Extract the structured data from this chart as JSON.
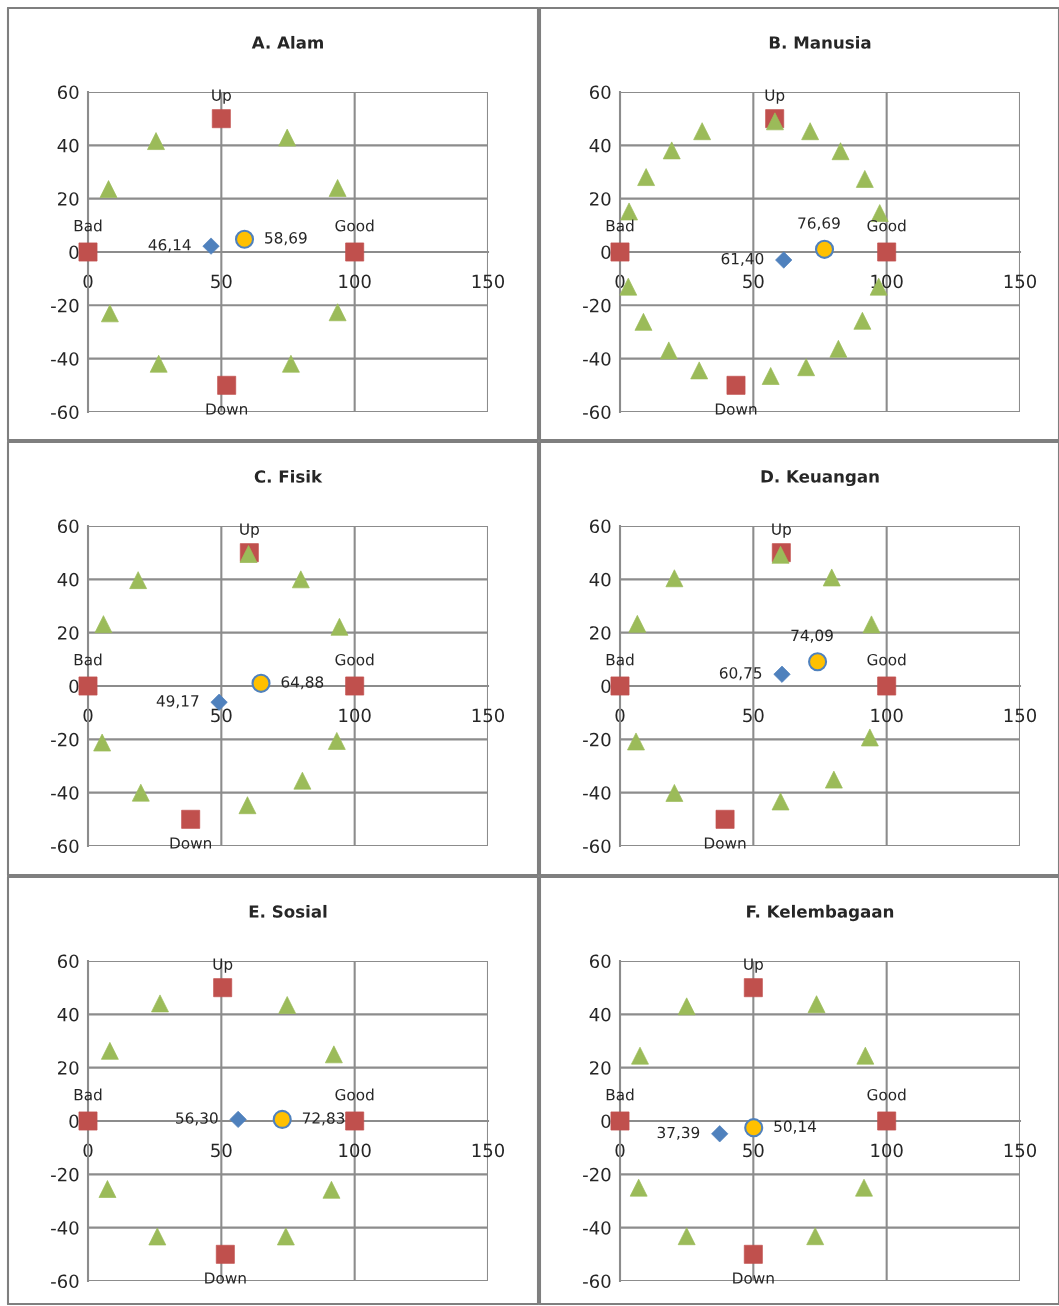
{
  "chart_data": [
    {
      "type": "scatter",
      "title": "A. Alam",
      "xlim": [
        0,
        150
      ],
      "xticks": [
        0,
        50,
        100,
        150
      ],
      "ylim": [
        -60,
        60
      ],
      "yticks": [
        -60,
        -40,
        -20,
        0,
        20,
        40,
        60
      ],
      "grid": true,
      "series": [
        {
          "color": "#9bbb59",
          "marker": "triangle",
          "x": [
            25.5,
            74.7,
            7.7,
            93.6,
            8.2,
            93.6,
            26.5,
            76.1
          ],
          "values": [
            41.6,
            42.9,
            23.6,
            24,
            -23,
            -22.6,
            -41.9,
            -41.9
          ]
        },
        {
          "color": "#c0504d",
          "marker": "square",
          "x": [
            0,
            100,
            50,
            52
          ],
          "values": [
            0,
            0,
            50,
            -50
          ],
          "value_labels": [
            "Bad",
            "Good",
            "Up",
            "Down"
          ]
        },
        {
          "color": "#4f81bd",
          "marker": "diamond",
          "x": [
            46.14
          ],
          "values": [
            2.2
          ]
        },
        {
          "color": "#ffc000",
          "marker": "circle",
          "x": [
            58.69
          ],
          "values": [
            4.8
          ]
        }
      ],
      "annotations": [
        {
          "text": "46,14",
          "x": 46.14,
          "y": 2.2
        },
        {
          "text": "58,69",
          "x": 58.69,
          "y": 4.8
        }
      ]
    },
    {
      "type": "scatter",
      "title": "B. Manusia",
      "xlim": [
        0,
        150
      ],
      "xticks": [
        0,
        50,
        100,
        150
      ],
      "ylim": [
        -60,
        60
      ],
      "yticks": [
        -60,
        -40,
        -20,
        0,
        20,
        40,
        60
      ],
      "grid": true,
      "series": [
        {
          "color": "#c0504d",
          "marker": "square",
          "x": [
            0,
            100,
            58,
            43.5
          ],
          "values": [
            0,
            0,
            50,
            -50
          ],
          "value_labels": [
            "Bad",
            "Good",
            "Up",
            "Down"
          ]
        },
        {
          "color": "#9bbb59",
          "marker": "triangle",
          "x": [
            30.8,
            19.4,
            9.8,
            3.4,
            58.1,
            71.3,
            82.7,
            91.8,
            97.4,
            3.1,
            97,
            8.8,
            18.3,
            29.7,
            56.5,
            69.8,
            81.9,
            90.9
          ],
          "values": [
            45.3,
            38.1,
            28.1,
            15.2,
            49,
            45.3,
            37.8,
            27.4,
            14.6,
            -13,
            -13,
            -26.2,
            -36.9,
            -44.4,
            -46.5,
            -43.2,
            -36.3,
            -25.8
          ]
        },
        {
          "color": "#4f81bd",
          "marker": "diamond",
          "x": [
            61.4
          ],
          "values": [
            -3
          ]
        },
        {
          "color": "#ffc000",
          "marker": "circle",
          "x": [
            76.69
          ],
          "values": [
            1
          ]
        }
      ],
      "annotations": [
        {
          "text": "61,40",
          "x": 61.4,
          "y": -3
        },
        {
          "text": "76,69",
          "x": 76.69,
          "y": 1
        }
      ]
    },
    {
      "type": "scatter",
      "title": "C. Fisik",
      "xlim": [
        0,
        150
      ],
      "xticks": [
        0,
        50,
        100,
        150
      ],
      "ylim": [
        -60,
        60
      ],
      "yticks": [
        -60,
        -40,
        -20,
        0,
        20,
        40,
        60
      ],
      "grid": true,
      "series": [
        {
          "color": "#c0504d",
          "marker": "square",
          "x": [
            0,
            100,
            60.5,
            38.5
          ],
          "values": [
            0,
            0,
            50,
            -50
          ],
          "value_labels": [
            "Bad",
            "Good",
            "Up",
            "Down"
          ]
        },
        {
          "color": "#9bbb59",
          "marker": "triangle",
          "x": [
            60.2,
            18.8,
            79.8,
            5.8,
            94.3,
            5.3,
            93.3,
            19.8,
            80.4,
            59.8
          ],
          "values": [
            49.5,
            39.7,
            40,
            23.2,
            22.2,
            -21.2,
            -20.6,
            -40,
            -35.5,
            -44.7
          ]
        },
        {
          "color": "#4f81bd",
          "marker": "diamond",
          "x": [
            49.17
          ],
          "values": [
            -6.1
          ]
        },
        {
          "color": "#ffc000",
          "marker": "circle",
          "x": [
            64.88
          ],
          "values": [
            1
          ]
        }
      ],
      "annotations": [
        {
          "text": "49,17",
          "x": 49.17,
          "y": -6.1
        },
        {
          "text": "64,88",
          "x": 64.88,
          "y": 1
        }
      ]
    },
    {
      "type": "scatter",
      "title": "D. Keuangan",
      "xlim": [
        0,
        150
      ],
      "xticks": [
        0,
        50,
        100,
        150
      ],
      "ylim": [
        -60,
        60
      ],
      "yticks": [
        -60,
        -40,
        -20,
        0,
        20,
        40,
        60
      ],
      "grid": true,
      "series": [
        {
          "color": "#c0504d",
          "marker": "square",
          "x": [
            0,
            100,
            60.5,
            39.4
          ],
          "values": [
            0,
            0,
            50,
            -50
          ],
          "value_labels": [
            "Bad",
            "Good",
            "Up",
            "Down"
          ]
        },
        {
          "color": "#9bbb59",
          "marker": "triangle",
          "x": [
            60.2,
            20.4,
            79.4,
            6.5,
            94.3,
            6,
            93.7,
            20.4,
            80.2,
            60.2
          ],
          "values": [
            49.2,
            40.4,
            40.7,
            23.3,
            23.1,
            -20.8,
            -19.3,
            -40.1,
            -35.1,
            -43.3
          ]
        },
        {
          "color": "#4f81bd",
          "marker": "diamond",
          "x": [
            60.75
          ],
          "values": [
            4.4
          ]
        },
        {
          "color": "#ffc000",
          "marker": "circle",
          "x": [
            74.09
          ],
          "values": [
            9.1
          ]
        }
      ],
      "annotations": [
        {
          "text": "60,75",
          "x": 60.75,
          "y": 4.4
        },
        {
          "text": "74,09",
          "x": 74.09,
          "y": 9.1
        }
      ]
    },
    {
      "type": "scatter",
      "title": "E. Sosial",
      "xlim": [
        0,
        150
      ],
      "xticks": [
        0,
        50,
        100,
        150
      ],
      "ylim": [
        -60,
        60
      ],
      "yticks": [
        -60,
        -40,
        -20,
        0,
        20,
        40,
        60
      ],
      "grid": true,
      "series": [
        {
          "color": "#c0504d",
          "marker": "square",
          "x": [
            0,
            100,
            50.5,
            51.5
          ],
          "values": [
            0,
            0,
            50,
            -50
          ],
          "value_labels": [
            "Bad",
            "Good",
            "Up",
            "Down"
          ]
        },
        {
          "color": "#9bbb59",
          "marker": "triangle",
          "x": [
            27,
            74.7,
            8.2,
            92.2,
            7.3,
            91.3,
            26,
            74.2
          ],
          "values": [
            44.1,
            43.5,
            26.3,
            25,
            -25.5,
            -25.8,
            -43.3,
            -43.3
          ]
        },
        {
          "color": "#4f81bd",
          "marker": "diamond",
          "x": [
            56.3
          ],
          "values": [
            0.6
          ]
        },
        {
          "color": "#ffc000",
          "marker": "circle",
          "x": [
            72.83
          ],
          "values": [
            0.6
          ]
        }
      ],
      "annotations": [
        {
          "text": "56,30",
          "x": 56.3,
          "y": 0.6
        },
        {
          "text": "72,83",
          "x": 72.83,
          "y": 0.6
        }
      ]
    },
    {
      "type": "scatter",
      "title": "F. Kelembagaan",
      "xlim": [
        0,
        150
      ],
      "xticks": [
        0,
        50,
        100,
        150
      ],
      "ylim": [
        -60,
        60
      ],
      "yticks": [
        -60,
        -40,
        -20,
        0,
        20,
        40,
        60
      ],
      "grid": true,
      "series": [
        {
          "color": "#c0504d",
          "marker": "square",
          "x": [
            0,
            100,
            50,
            50
          ],
          "values": [
            0,
            0,
            50,
            -50
          ],
          "value_labels": [
            "Bad",
            "Good",
            "Up",
            "Down"
          ]
        },
        {
          "color": "#9bbb59",
          "marker": "triangle",
          "x": [
            25,
            73.7,
            7.5,
            92,
            7,
            91.5,
            25,
            73.2
          ],
          "values": [
            43,
            43.8,
            24.5,
            24.5,
            -25,
            -25,
            -43.2,
            -43.2
          ]
        },
        {
          "color": "#4f81bd",
          "marker": "diamond",
          "x": [
            37.39
          ],
          "values": [
            -4.8
          ]
        },
        {
          "color": "#ffc000",
          "marker": "circle",
          "x": [
            50.14
          ],
          "values": [
            -2.5
          ]
        }
      ],
      "annotations": [
        {
          "text": "37,39",
          "x": 37.39,
          "y": -4.8
        },
        {
          "text": "50,14",
          "x": 50.14,
          "y": -2.5
        }
      ]
    }
  ]
}
